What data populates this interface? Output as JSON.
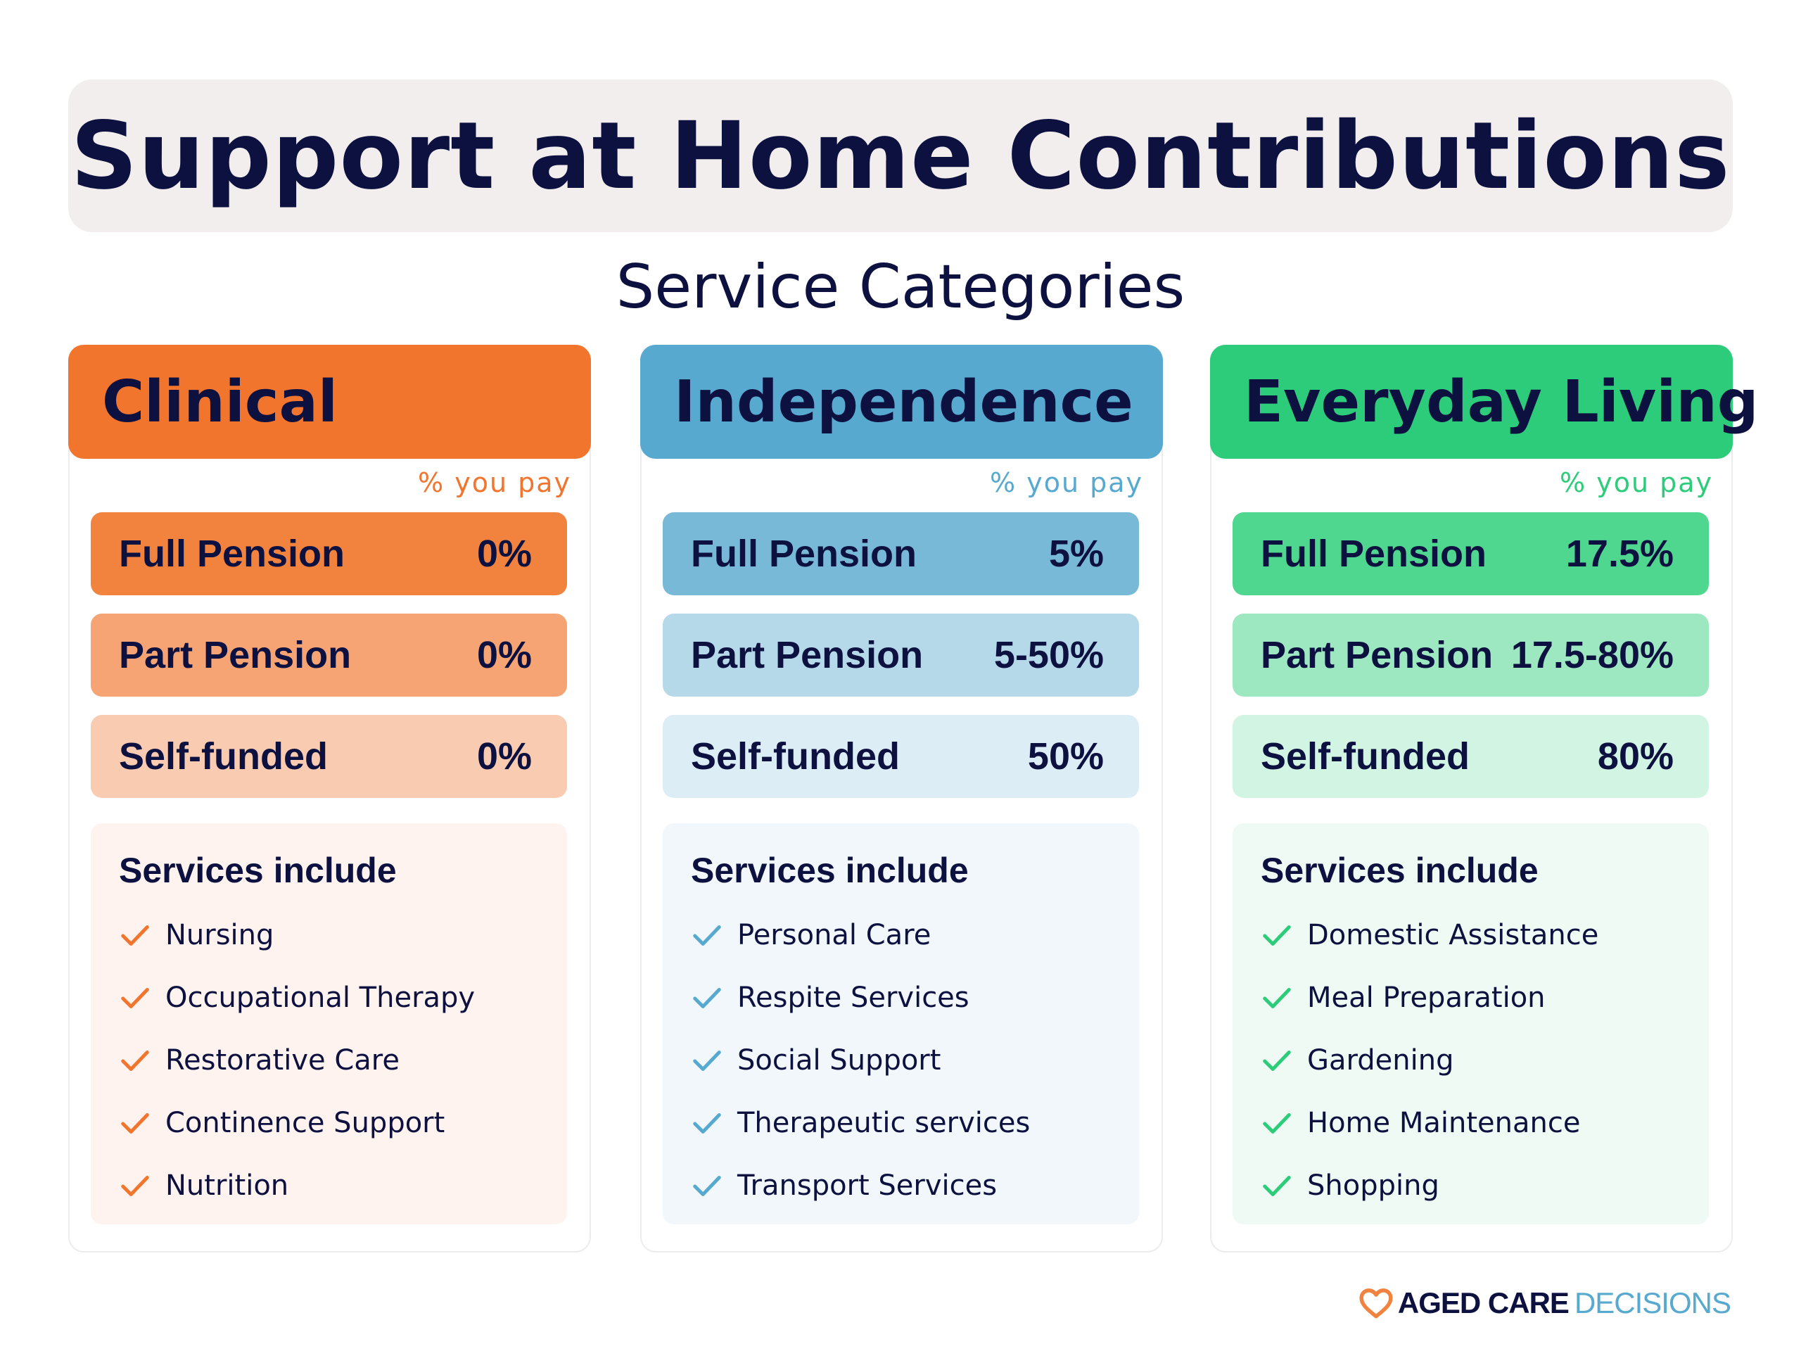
{
  "title": "Support at Home Contributions",
  "subtitle": "Service Categories",
  "colors": {
    "navy": "#0d1140",
    "clinical": "#f2752e",
    "independence": "#57a9d0",
    "everyday": "#2dcc7b"
  },
  "cards": [
    {
      "name": "Clinical",
      "pay_label": "% you pay",
      "rates": [
        {
          "label": "Full Pension",
          "value": "0%"
        },
        {
          "label": "Part Pension",
          "value": "0%"
        },
        {
          "label": "Self-funded",
          "value": "0%"
        }
      ],
      "services_heading": "Services include",
      "services": [
        "Nursing",
        "Occupational Therapy",
        "Restorative Care",
        "Continence Support",
        "Nutrition"
      ]
    },
    {
      "name": "Independence",
      "pay_label": "% you pay",
      "rates": [
        {
          "label": "Full Pension",
          "value": "5%"
        },
        {
          "label": "Part Pension",
          "value": "5-50%"
        },
        {
          "label": "Self-funded",
          "value": "50%"
        }
      ],
      "services_heading": "Services include",
      "services": [
        "Personal Care",
        "Respite Services",
        "Social Support",
        "Therapeutic services",
        "Transport Services"
      ]
    },
    {
      "name": "Everyday Living",
      "pay_label": "% you pay",
      "rates": [
        {
          "label": "Full Pension",
          "value": "17.5%"
        },
        {
          "label": "Part Pension",
          "value": "17.5-80%"
        },
        {
          "label": "Self-funded",
          "value": "80%"
        }
      ],
      "services_heading": "Services include",
      "services": [
        "Domestic Assistance",
        "Meal Preparation",
        "Gardening",
        "Home Maintenance",
        "Shopping"
      ]
    }
  ],
  "logo": {
    "icon": "heart-icon",
    "word1": "AGED CARE",
    "word2": "DECISIONS"
  }
}
